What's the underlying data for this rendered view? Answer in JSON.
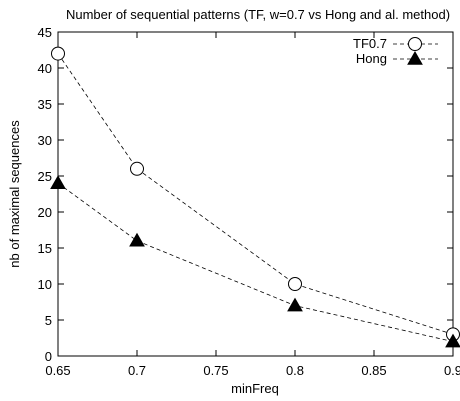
{
  "chart_data": {
    "type": "line",
    "title": "Number of sequential patterns (TF, w=0.7 vs Hong and al. method)",
    "xlabel": "minFreq",
    "ylabel": "nb of maximal sequences",
    "xlim": [
      0.65,
      0.9
    ],
    "ylim": [
      0,
      45
    ],
    "x_ticks": [
      "0.65",
      "0.7",
      "0.75",
      "0.8",
      "0.85",
      "0.9"
    ],
    "y_ticks": [
      "0",
      "5",
      "10",
      "15",
      "20",
      "25",
      "30",
      "35",
      "40",
      "45"
    ],
    "grid": false,
    "legend_position": "top-right",
    "x": [
      0.65,
      0.7,
      0.8,
      0.9
    ],
    "series": [
      {
        "name": "TF0.7",
        "marker": "open-circle",
        "line_style": "dashed",
        "color": "#000000",
        "values": [
          42,
          26,
          10,
          3
        ]
      },
      {
        "name": "Hong",
        "marker": "filled-triangle",
        "line_style": "dashed",
        "color": "#000000",
        "values": [
          24,
          16,
          7,
          2
        ]
      }
    ]
  }
}
